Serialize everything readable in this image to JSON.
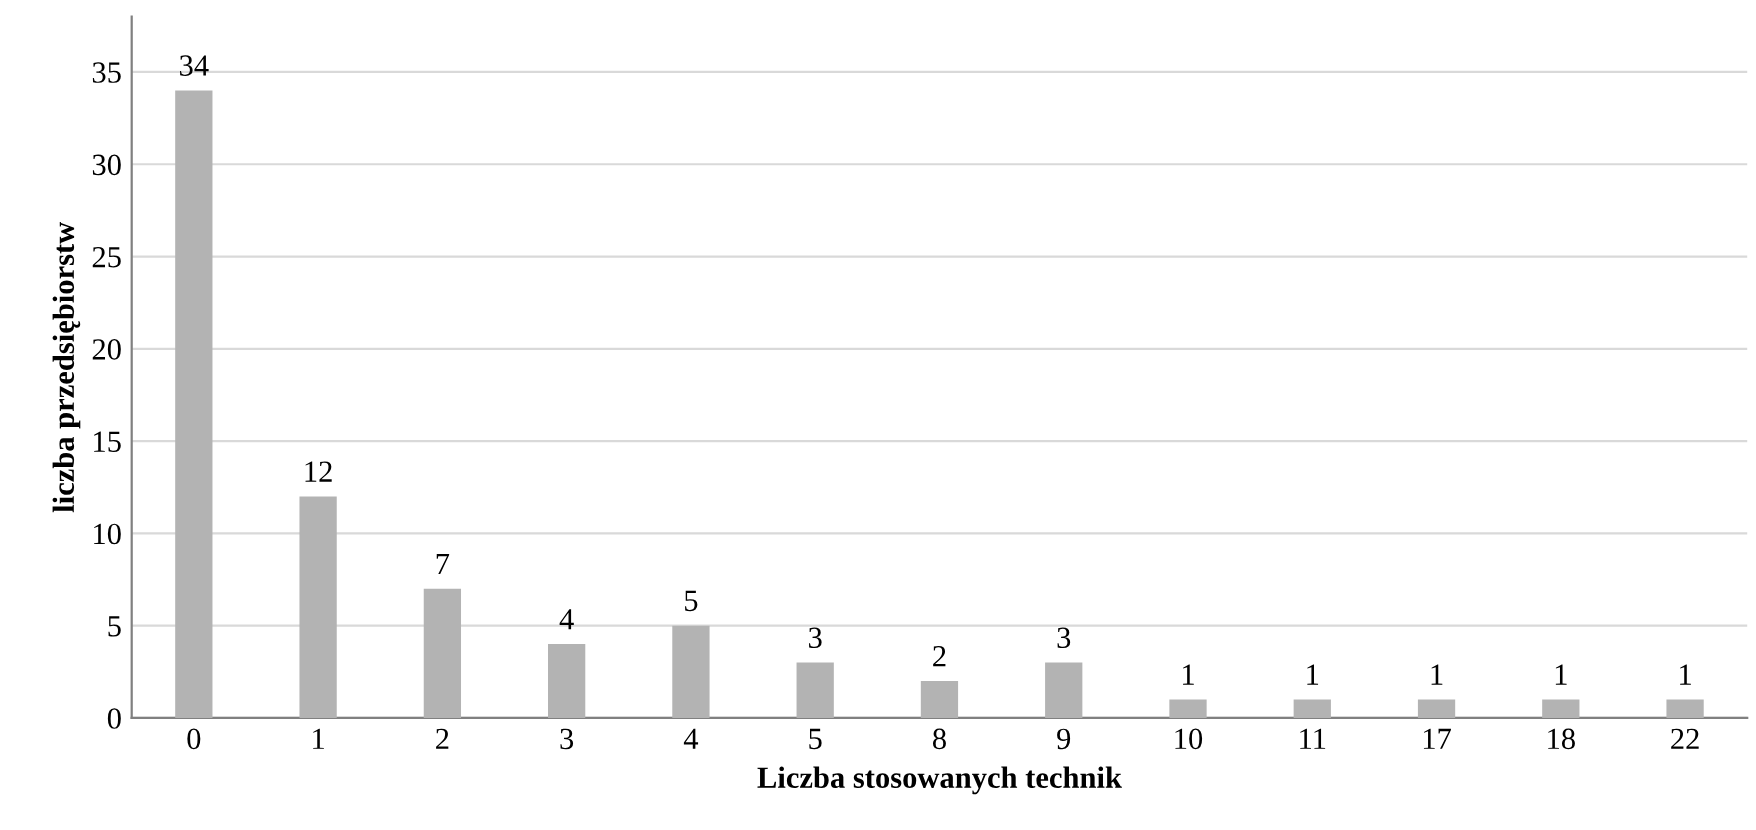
{
  "chart_data": {
    "type": "bar",
    "xlabel": "Liczba stosowanych technik",
    "ylabel": "liczba przedsiębiorstw",
    "categories": [
      "0",
      "1",
      "2",
      "3",
      "4",
      "5",
      "8",
      "9",
      "10",
      "11",
      "17",
      "18",
      "22"
    ],
    "values": [
      34,
      12,
      7,
      4,
      5,
      3,
      2,
      3,
      1,
      1,
      1,
      1,
      1
    ],
    "color": "#b3b3b3",
    "ylim": [
      0,
      38
    ],
    "yticks": [
      0,
      5,
      10,
      15,
      20,
      25,
      30,
      35
    ],
    "grid": "y",
    "data_labels": true
  }
}
